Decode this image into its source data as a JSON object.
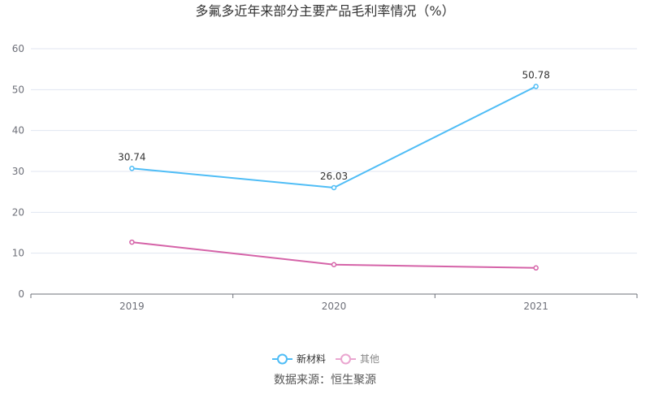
{
  "chart_data": {
    "type": "line",
    "title": "多氟多近年来部分主要产品毛利率情况（%）",
    "categories": [
      "2019",
      "2020",
      "2021"
    ],
    "ylim": [
      0,
      60
    ],
    "yticks": [
      0,
      10,
      20,
      30,
      40,
      50,
      60
    ],
    "grid": true,
    "legend_position": "bottom",
    "series": [
      {
        "name": "新材料",
        "values": [
          30.74,
          26.03,
          50.78
        ],
        "color": "#4fbdf6",
        "labels": [
          "30.74",
          "26.03",
          "50.78"
        ]
      },
      {
        "name": "其他",
        "values": [
          12.7,
          7.2,
          6.4
        ],
        "color": "#d563a8",
        "legend_color": "#eaa6d0"
      }
    ],
    "source": "数据来源：恒生聚源"
  }
}
